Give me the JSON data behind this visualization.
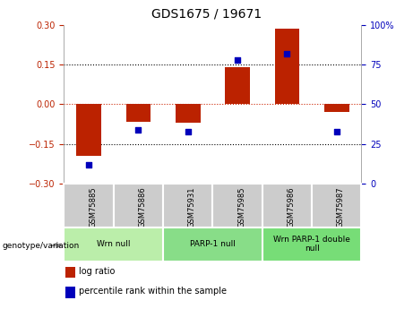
{
  "title": "GDS1675 / 19671",
  "samples": [
    "GSM75885",
    "GSM75886",
    "GSM75931",
    "GSM75985",
    "GSM75986",
    "GSM75987"
  ],
  "log_ratios": [
    -0.195,
    -0.065,
    -0.07,
    0.14,
    0.285,
    -0.03
  ],
  "percentile_ranks": [
    12,
    34,
    33,
    78,
    82,
    33
  ],
  "ylim_left": [
    -0.3,
    0.3
  ],
  "ylim_right": [
    0,
    100
  ],
  "yticks_left": [
    -0.3,
    -0.15,
    0,
    0.15,
    0.3
  ],
  "yticks_right": [
    0,
    25,
    50,
    75,
    100
  ],
  "bar_color": "#bb2200",
  "dot_color": "#0000bb",
  "groups": [
    {
      "label": "Wrn null",
      "start": 0,
      "end": 2,
      "color": "#bbeeaa"
    },
    {
      "label": "PARP-1 null",
      "start": 2,
      "end": 4,
      "color": "#88dd88"
    },
    {
      "label": "Wrn PARP-1 double\nnull",
      "start": 4,
      "end": 6,
      "color": "#77dd77"
    }
  ],
  "legend_items": [
    {
      "label": "log ratio",
      "color": "#bb2200"
    },
    {
      "label": "percentile rank within the sample",
      "color": "#0000bb"
    }
  ],
  "genotype_label": "genotype/variation",
  "background_color": "#ffffff",
  "plot_bg": "#ffffff",
  "zero_line_color": "#cc2200",
  "sample_box_color": "#cccccc",
  "bar_width": 0.5
}
